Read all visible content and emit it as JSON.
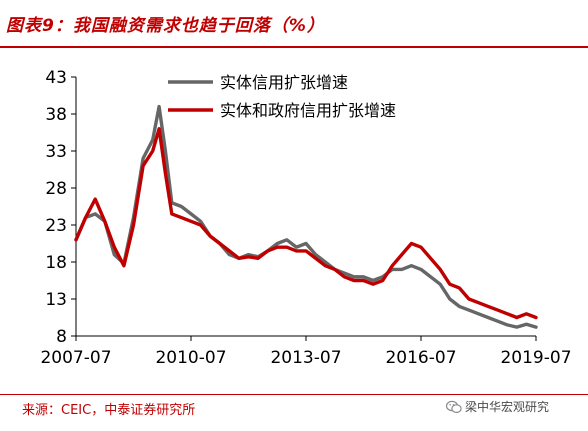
{
  "header": {
    "title": "图表9：我国融资需求也趋于回落（%）"
  },
  "footer": {
    "source": "来源：CEIC，中泰证券研究所",
    "watermark": "梁中华宏观研究"
  },
  "colors": {
    "brand_red": "#c00000",
    "series_gray": "#666666",
    "series_red": "#c00000"
  },
  "chart_data": {
    "type": "line",
    "title": "",
    "xlabel": "",
    "ylabel": "",
    "x_ticks": [
      "2007-07",
      "2010-07",
      "2013-07",
      "2016-07",
      "2019-07"
    ],
    "y_ticks": [
      8,
      13,
      18,
      23,
      28,
      33,
      38,
      43
    ],
    "ylim": [
      8,
      43
    ],
    "xlim": [
      "2007-07",
      "2019-07"
    ],
    "grid": false,
    "legend_position": "top-center",
    "series": [
      {
        "name": "实体信用扩张增速",
        "color": "#666666",
        "x": [
          "2007-07",
          "2007-10",
          "2008-01",
          "2008-04",
          "2008-07",
          "2008-10",
          "2009-01",
          "2009-04",
          "2009-07",
          "2009-09",
          "2009-11",
          "2010-01",
          "2010-04",
          "2010-07",
          "2010-10",
          "2011-01",
          "2011-04",
          "2011-07",
          "2011-10",
          "2012-01",
          "2012-04",
          "2012-07",
          "2012-10",
          "2013-01",
          "2013-04",
          "2013-07",
          "2013-10",
          "2014-01",
          "2014-04",
          "2014-07",
          "2014-10",
          "2015-01",
          "2015-04",
          "2015-07",
          "2015-10",
          "2016-01",
          "2016-04",
          "2016-07",
          "2016-10",
          "2017-01",
          "2017-04",
          "2017-07",
          "2017-10",
          "2018-01",
          "2018-04",
          "2018-07",
          "2018-10",
          "2019-01",
          "2019-04",
          "2019-07"
        ],
        "values": [
          21,
          24,
          24.5,
          23.5,
          19,
          17.8,
          24,
          32,
          34.5,
          39,
          33,
          26,
          25.5,
          24.5,
          23.5,
          21.5,
          20.5,
          19,
          18.5,
          19,
          18.7,
          19.5,
          20.5,
          21,
          20,
          20.5,
          19,
          18,
          17,
          16.5,
          16,
          16,
          15.5,
          16,
          17,
          17,
          17.5,
          17,
          16,
          15,
          13,
          12,
          11.5,
          11,
          10.5,
          10,
          9.5,
          9.2,
          9.6,
          9.2
        ]
      },
      {
        "name": "实体和政府信用扩张增速",
        "color": "#c00000",
        "x": [
          "2007-07",
          "2007-10",
          "2008-01",
          "2008-04",
          "2008-07",
          "2008-10",
          "2009-01",
          "2009-04",
          "2009-07",
          "2009-09",
          "2009-11",
          "2010-01",
          "2010-04",
          "2010-07",
          "2010-10",
          "2011-01",
          "2011-04",
          "2011-07",
          "2011-10",
          "2012-01",
          "2012-04",
          "2012-07",
          "2012-10",
          "2013-01",
          "2013-04",
          "2013-07",
          "2013-10",
          "2014-01",
          "2014-04",
          "2014-07",
          "2014-10",
          "2015-01",
          "2015-04",
          "2015-07",
          "2015-10",
          "2016-01",
          "2016-04",
          "2016-07",
          "2016-10",
          "2017-01",
          "2017-04",
          "2017-07",
          "2017-10",
          "2018-01",
          "2018-04",
          "2018-07",
          "2018-10",
          "2019-01",
          "2019-04",
          "2019-07"
        ],
        "values": [
          21,
          24,
          26.5,
          23.5,
          20,
          17.5,
          23,
          31,
          33,
          36,
          30,
          24.5,
          24,
          23.5,
          23,
          21.5,
          20.5,
          19.5,
          18.5,
          18.7,
          18.5,
          19.5,
          20,
          20,
          19.5,
          19.5,
          18.5,
          17.5,
          17,
          16,
          15.5,
          15.5,
          15,
          15.5,
          17.5,
          19,
          20.5,
          20,
          18.5,
          17,
          15,
          14.5,
          13,
          12.5,
          12,
          11.5,
          11,
          10.5,
          11,
          10.5
        ]
      }
    ]
  }
}
